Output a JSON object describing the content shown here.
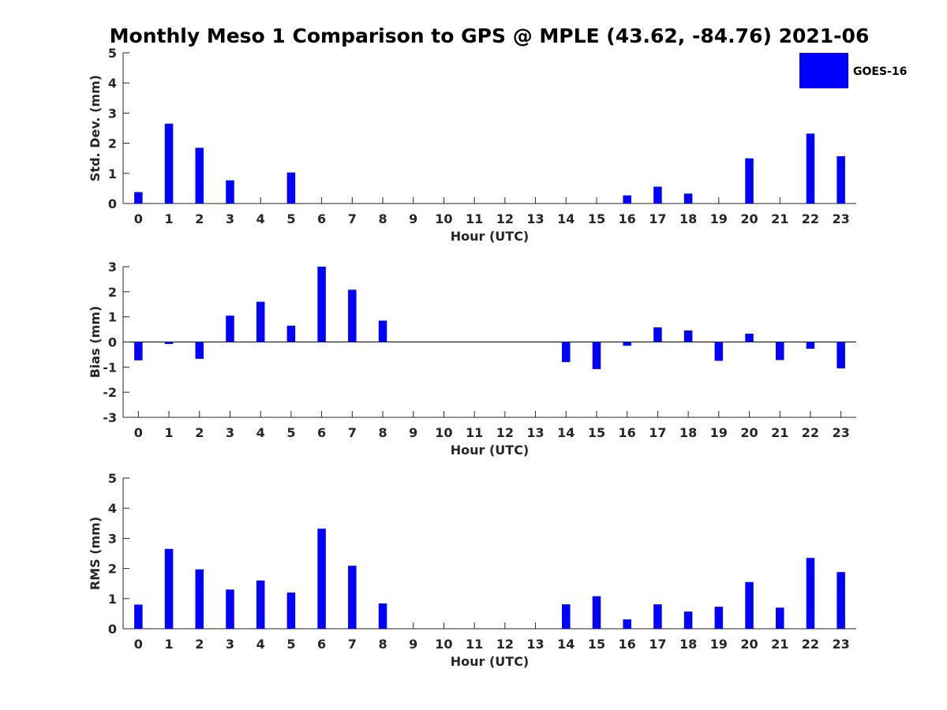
{
  "title": "Monthly Meso 1 Comparison to GPS @ MPLE (43.62, -84.76) 2021-06",
  "legend": {
    "label": "GOES-16",
    "position": "top-right"
  },
  "colors": {
    "bar": "#0000ff",
    "axis": "#262626"
  },
  "chart_data": [
    {
      "type": "bar",
      "xlabel": "Hour (UTC)",
      "ylabel": "Std. Dev. (mm)",
      "ylim": [
        0,
        5
      ],
      "yticks": [
        0,
        1,
        2,
        3,
        4,
        5
      ],
      "categories": [
        "0",
        "1",
        "2",
        "3",
        "4",
        "5",
        "6",
        "7",
        "8",
        "9",
        "10",
        "11",
        "12",
        "13",
        "14",
        "15",
        "16",
        "17",
        "18",
        "19",
        "20",
        "21",
        "22",
        "23"
      ],
      "series": [
        {
          "name": "GOES-16",
          "values": [
            0.38,
            2.65,
            1.85,
            0.77,
            null,
            1.03,
            null,
            null,
            null,
            null,
            null,
            null,
            null,
            null,
            null,
            null,
            0.27,
            0.56,
            0.33,
            null,
            1.5,
            null,
            2.32,
            1.57
          ]
        }
      ]
    },
    {
      "type": "bar",
      "xlabel": "Hour (UTC)",
      "ylabel": "Bias (mm)",
      "ylim": [
        -3,
        3
      ],
      "yticks": [
        -3,
        -2,
        -1,
        0,
        1,
        2,
        3
      ],
      "categories": [
        "0",
        "1",
        "2",
        "3",
        "4",
        "5",
        "6",
        "7",
        "8",
        "9",
        "10",
        "11",
        "12",
        "13",
        "14",
        "15",
        "16",
        "17",
        "18",
        "19",
        "20",
        "21",
        "22",
        "23"
      ],
      "series": [
        {
          "name": "GOES-16",
          "values": [
            -0.73,
            -0.08,
            -0.67,
            1.05,
            1.6,
            0.65,
            3.0,
            2.08,
            0.85,
            null,
            null,
            null,
            null,
            null,
            -0.8,
            -1.08,
            -0.15,
            0.58,
            0.46,
            -0.75,
            0.33,
            -0.72,
            -0.27,
            -1.05
          ]
        }
      ]
    },
    {
      "type": "bar",
      "xlabel": "Hour (UTC)",
      "ylabel": "RMS (mm)",
      "ylim": [
        0,
        5
      ],
      "yticks": [
        0,
        1,
        2,
        3,
        4,
        5
      ],
      "categories": [
        "0",
        "1",
        "2",
        "3",
        "4",
        "5",
        "6",
        "7",
        "8",
        "9",
        "10",
        "11",
        "12",
        "13",
        "14",
        "15",
        "16",
        "17",
        "18",
        "19",
        "20",
        "21",
        "22",
        "23"
      ],
      "series": [
        {
          "name": "GOES-16",
          "values": [
            0.8,
            2.65,
            1.97,
            1.3,
            1.6,
            1.2,
            3.32,
            2.09,
            0.84,
            null,
            null,
            null,
            null,
            null,
            0.81,
            1.08,
            0.31,
            0.81,
            0.57,
            0.73,
            1.55,
            0.7,
            2.35,
            1.88
          ]
        }
      ]
    }
  ]
}
